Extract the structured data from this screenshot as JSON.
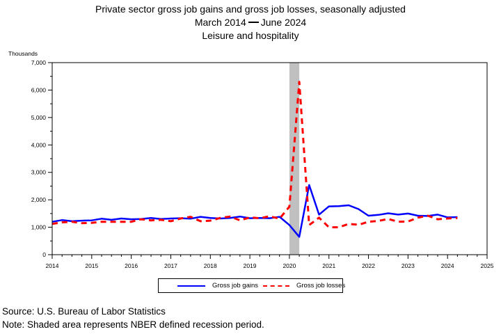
{
  "title": {
    "line1": "Private sector gross job gains and gross job losses, seasonally adjusted",
    "line2_start": "March 2014",
    "line2_end": "June 2024",
    "line3": "Leisure and hospitality"
  },
  "source": "Source: U.S. Bureau of Labor Statistics",
  "note": "Note: Shaded area represents NBER defined recession period.",
  "chart_data": {
    "type": "line",
    "ylabel": "Thousands",
    "ylim": [
      0,
      7000
    ],
    "xlim": [
      2014,
      2025
    ],
    "y_ticks": [
      0,
      1000,
      2000,
      3000,
      4000,
      5000,
      6000,
      7000
    ],
    "y_tick_labels": [
      "0",
      "1,000",
      "2,000",
      "3,000",
      "4,000",
      "5,000",
      "6,000",
      "7,000"
    ],
    "x_ticks": [
      2014,
      2015,
      2016,
      2017,
      2018,
      2019,
      2020,
      2021,
      2022,
      2023,
      2024,
      2025
    ],
    "x_tick_labels": [
      "2014",
      "2015",
      "2016",
      "2017",
      "2018",
      "2019",
      "2020",
      "2021",
      "2022",
      "2023",
      "2024",
      "2025"
    ],
    "recession": [
      2020.0,
      2020.25
    ],
    "legend_position": "bottom-center",
    "grid": false,
    "x": [
      2014.0,
      2014.25,
      2014.5,
      2014.75,
      2015.0,
      2015.25,
      2015.5,
      2015.75,
      2016.0,
      2016.25,
      2016.5,
      2016.75,
      2017.0,
      2017.25,
      2017.5,
      2017.75,
      2018.0,
      2018.25,
      2018.5,
      2018.75,
      2019.0,
      2019.25,
      2019.5,
      2019.75,
      2020.0,
      2020.25,
      2020.5,
      2020.75,
      2021.0,
      2021.25,
      2021.5,
      2021.75,
      2022.0,
      2022.25,
      2022.5,
      2022.75,
      2023.0,
      2023.25,
      2023.5,
      2023.75,
      2024.0,
      2024.25
    ],
    "series": [
      {
        "name": "Gross job gains",
        "color": "#0000ff",
        "style": "solid",
        "values": [
          1200,
          1260,
          1220,
          1240,
          1250,
          1310,
          1270,
          1320,
          1290,
          1300,
          1340,
          1300,
          1320,
          1330,
          1310,
          1380,
          1340,
          1320,
          1340,
          1390,
          1330,
          1340,
          1330,
          1380,
          1080,
          650,
          2540,
          1460,
          1760,
          1770,
          1800,
          1660,
          1420,
          1450,
          1510,
          1460,
          1500,
          1420,
          1410,
          1460,
          1360,
          1370
        ]
      },
      {
        "name": "Gross job losses",
        "color": "#ff0000",
        "style": "dashed",
        "values": [
          1120,
          1180,
          1200,
          1150,
          1160,
          1200,
          1200,
          1200,
          1200,
          1290,
          1250,
          1270,
          1220,
          1320,
          1380,
          1220,
          1240,
          1340,
          1390,
          1250,
          1360,
          1330,
          1400,
          1310,
          1750,
          6300,
          1080,
          1350,
          1000,
          1000,
          1120,
          1090,
          1200,
          1230,
          1300,
          1200,
          1210,
          1350,
          1420,
          1290,
          1320,
          1340
        ]
      }
    ]
  }
}
